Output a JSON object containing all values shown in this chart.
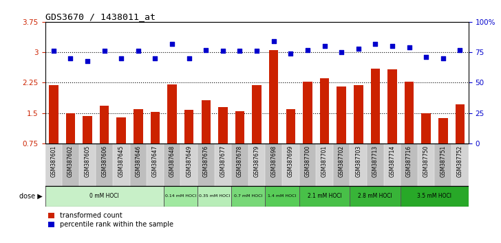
{
  "title": "GDS3670 / 1438011_at",
  "samples": [
    "GSM387601",
    "GSM387602",
    "GSM387605",
    "GSM387606",
    "GSM387645",
    "GSM387646",
    "GSM387647",
    "GSM387648",
    "GSM387649",
    "GSM387676",
    "GSM387677",
    "GSM387678",
    "GSM387679",
    "GSM387698",
    "GSM387699",
    "GSM387700",
    "GSM387701",
    "GSM387702",
    "GSM387703",
    "GSM387713",
    "GSM387714",
    "GSM387716",
    "GSM387750",
    "GSM387751",
    "GSM387752"
  ],
  "bar_values": [
    2.18,
    1.5,
    1.42,
    1.68,
    1.4,
    1.6,
    1.52,
    2.2,
    1.58,
    1.82,
    1.65,
    1.55,
    2.18,
    3.05,
    1.6,
    2.28,
    2.35,
    2.15,
    2.18,
    2.6,
    2.58,
    2.28,
    1.5,
    1.38,
    1.72
  ],
  "dot_values": [
    76,
    70,
    68,
    76,
    70,
    76,
    70,
    82,
    70,
    77,
    76,
    76,
    76,
    84,
    74,
    77,
    80,
    75,
    78,
    82,
    80,
    79,
    71,
    70,
    77
  ],
  "dose_groups": [
    {
      "label": "0 mM HOCl",
      "start": 0,
      "end": 7,
      "color": "#c8f0c8"
    },
    {
      "label": "0.14 mM HOCl",
      "start": 7,
      "end": 9,
      "color": "#a0e8a0"
    },
    {
      "label": "0.35 mM HOCl",
      "start": 9,
      "end": 11,
      "color": "#b8edb8"
    },
    {
      "label": "0.7 mM HOCl",
      "start": 11,
      "end": 13,
      "color": "#78d878"
    },
    {
      "label": "1.4 mM HOCl",
      "start": 13,
      "end": 15,
      "color": "#58cc58"
    },
    {
      "label": "2.1 mM HOCl",
      "start": 15,
      "end": 18,
      "color": "#48c048"
    },
    {
      "label": "2.8 mM HOCl",
      "start": 18,
      "end": 21,
      "color": "#38b438"
    },
    {
      "label": "3.5 mM HOCl",
      "start": 21,
      "end": 25,
      "color": "#28a828"
    }
  ],
  "bar_color": "#cc2200",
  "dot_color": "#0000cc",
  "ylim_left": [
    0.75,
    3.75
  ],
  "ylim_right": [
    0,
    100
  ],
  "yticks_left": [
    0.75,
    1.5,
    2.25,
    3.0,
    3.75
  ],
  "yticks_right": [
    0,
    25,
    50,
    75,
    100
  ],
  "ytick_labels_left": [
    "0.75",
    "1.5",
    "2.25",
    "3",
    "3.75"
  ],
  "ytick_labels_right": [
    "0",
    "25",
    "50",
    "75",
    "100%"
  ],
  "hlines": [
    3.0,
    2.25,
    1.5
  ],
  "background_color": "#ffffff"
}
